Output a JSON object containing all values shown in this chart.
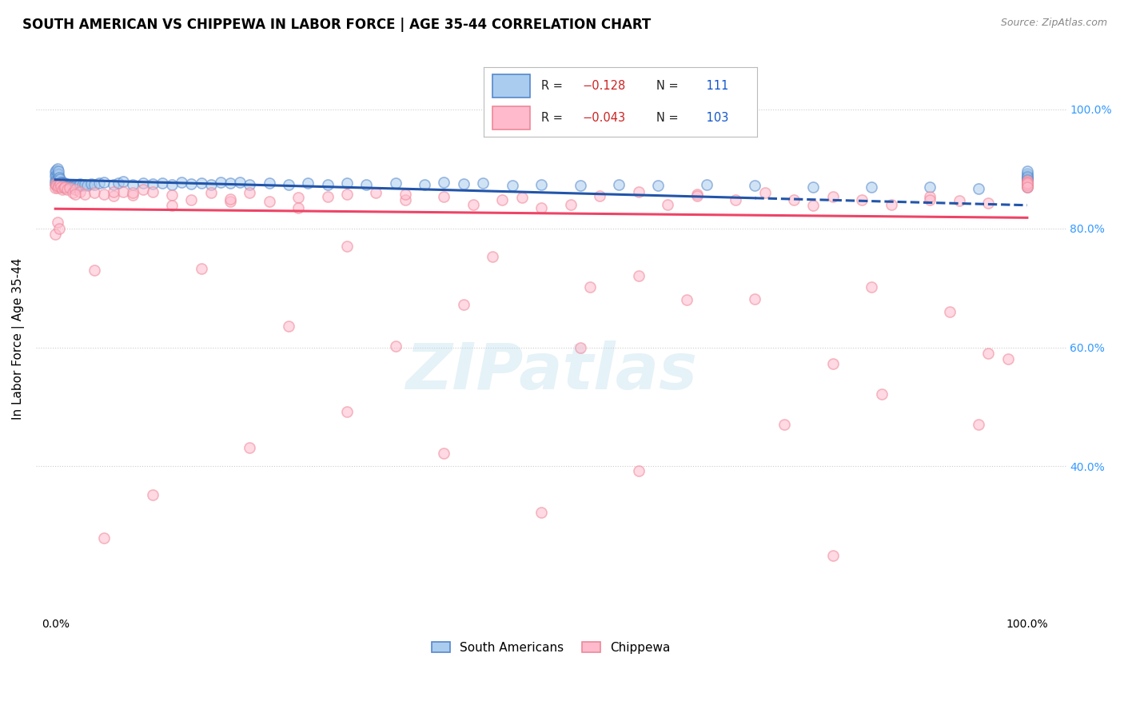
{
  "title": "SOUTH AMERICAN VS CHIPPEWA IN LABOR FORCE | AGE 35-44 CORRELATION CHART",
  "source": "Source: ZipAtlas.com",
  "ylabel": "In Labor Force | Age 35-44",
  "watermark": "ZIPatlas",
  "legend_blue_R": "-0.128",
  "legend_blue_N": "111",
  "legend_pink_R": "-0.043",
  "legend_pink_N": "103",
  "blue_face": "#AACCEE",
  "blue_edge": "#5588CC",
  "pink_face": "#FFBBCC",
  "pink_edge": "#EE8899",
  "trend_blue": "#2255AA",
  "trend_pink": "#EE4466",
  "right_axis_color": "#3399FF",
  "grid_color": "#CCCCCC",
  "bg_color": "#FFFFFF",
  "ylim": [
    0.15,
    1.08
  ],
  "xlim": [
    -0.02,
    1.04
  ],
  "ytick_vals": [
    0.4,
    0.6,
    0.8,
    1.0
  ],
  "ytick_labels": [
    "40.0%",
    "60.0%",
    "80.0%",
    "100.0%"
  ],
  "blue_trend_x0": 0.0,
  "blue_trend_x1": 0.72,
  "blue_trend_y0": 0.882,
  "blue_trend_y1": 0.851,
  "blue_trend_dash_x0": 0.72,
  "blue_trend_dash_x1": 1.0,
  "blue_trend_dash_y0": 0.851,
  "blue_trend_dash_y1": 0.839,
  "pink_trend_x0": 0.0,
  "pink_trend_x1": 1.0,
  "pink_trend_y0": 0.833,
  "pink_trend_y1": 0.818,
  "marker_size": 90,
  "marker_alpha": 0.55,
  "marker_lw": 1.2,
  "blue_x": [
    0.0,
    0.0,
    0.0,
    0.0,
    0.001,
    0.001,
    0.001,
    0.001,
    0.002,
    0.002,
    0.002,
    0.002,
    0.002,
    0.003,
    0.003,
    0.003,
    0.003,
    0.003,
    0.004,
    0.004,
    0.004,
    0.005,
    0.005,
    0.005,
    0.006,
    0.006,
    0.007,
    0.007,
    0.008,
    0.008,
    0.009,
    0.009,
    0.01,
    0.01,
    0.011,
    0.012,
    0.013,
    0.014,
    0.015,
    0.016,
    0.017,
    0.018,
    0.019,
    0.02,
    0.022,
    0.025,
    0.028,
    0.03,
    0.033,
    0.037,
    0.04,
    0.045,
    0.05,
    0.06,
    0.065,
    0.07,
    0.08,
    0.09,
    0.1,
    0.11,
    0.12,
    0.13,
    0.14,
    0.15,
    0.16,
    0.17,
    0.18,
    0.19,
    0.2,
    0.22,
    0.24,
    0.26,
    0.28,
    0.3,
    0.32,
    0.35,
    0.38,
    0.4,
    0.42,
    0.44,
    0.47,
    0.5,
    0.54,
    0.58,
    0.62,
    0.67,
    0.72,
    0.78,
    0.84,
    0.9,
    0.95,
    1.0,
    1.0,
    1.0,
    1.0,
    1.0,
    1.0,
    1.0,
    1.0,
    1.0,
    1.0,
    1.0,
    1.0,
    1.0,
    1.0,
    1.0,
    1.0,
    1.0,
    1.0,
    1.0,
    1.0
  ],
  "blue_y": [
    0.875,
    0.88,
    0.888,
    0.895,
    0.874,
    0.882,
    0.89,
    0.898,
    0.873,
    0.879,
    0.885,
    0.892,
    0.9,
    0.871,
    0.877,
    0.884,
    0.891,
    0.897,
    0.872,
    0.878,
    0.886,
    0.87,
    0.876,
    0.883,
    0.871,
    0.878,
    0.87,
    0.877,
    0.871,
    0.876,
    0.87,
    0.875,
    0.871,
    0.876,
    0.87,
    0.871,
    0.87,
    0.872,
    0.871,
    0.87,
    0.87,
    0.871,
    0.87,
    0.871,
    0.87,
    0.875,
    0.872,
    0.874,
    0.872,
    0.875,
    0.873,
    0.876,
    0.878,
    0.874,
    0.876,
    0.879,
    0.874,
    0.876,
    0.875,
    0.876,
    0.873,
    0.877,
    0.875,
    0.876,
    0.874,
    0.877,
    0.876,
    0.878,
    0.873,
    0.876,
    0.874,
    0.876,
    0.873,
    0.876,
    0.874,
    0.876,
    0.873,
    0.877,
    0.875,
    0.876,
    0.872,
    0.873,
    0.872,
    0.874,
    0.872,
    0.873,
    0.872,
    0.87,
    0.87,
    0.869,
    0.867,
    0.875,
    0.878,
    0.882,
    0.886,
    0.89,
    0.893,
    0.896,
    0.882,
    0.878,
    0.875,
    0.88,
    0.884,
    0.887,
    0.878,
    0.875,
    0.872,
    0.87,
    0.875,
    0.878,
    0.882
  ],
  "pink_x": [
    0.0,
    0.0,
    0.0,
    0.001,
    0.002,
    0.002,
    0.003,
    0.004,
    0.005,
    0.006,
    0.007,
    0.009,
    0.01,
    0.012,
    0.015,
    0.018,
    0.02,
    0.025,
    0.03,
    0.04,
    0.05,
    0.06,
    0.07,
    0.08,
    0.09,
    0.1,
    0.12,
    0.14,
    0.16,
    0.18,
    0.2,
    0.22,
    0.25,
    0.28,
    0.3,
    0.33,
    0.36,
    0.4,
    0.43,
    0.46,
    0.5,
    0.53,
    0.56,
    0.6,
    0.63,
    0.66,
    0.7,
    0.73,
    0.76,
    0.8,
    0.83,
    0.86,
    0.9,
    0.93,
    0.96,
    1.0,
    1.0,
    1.0,
    1.0,
    1.0,
    1.0,
    1.0,
    1.0,
    0.04,
    0.08,
    0.12,
    0.18,
    0.24,
    0.3,
    0.36,
    0.42,
    0.48,
    0.54,
    0.6,
    0.66,
    0.72,
    0.78,
    0.84,
    0.9,
    0.96,
    0.02,
    0.06,
    0.15,
    0.25,
    0.35,
    0.45,
    0.55,
    0.65,
    0.75,
    0.85,
    0.92,
    0.98,
    0.1,
    0.2,
    0.4,
    0.6,
    0.8,
    1.0,
    0.05,
    0.5,
    0.8,
    0.95,
    0.3
  ],
  "pink_y": [
    0.875,
    0.868,
    0.79,
    0.872,
    0.868,
    0.81,
    0.871,
    0.8,
    0.875,
    0.87,
    0.865,
    0.868,
    0.87,
    0.865,
    0.868,
    0.86,
    0.865,
    0.862,
    0.858,
    0.86,
    0.858,
    0.855,
    0.862,
    0.856,
    0.865,
    0.862,
    0.856,
    0.848,
    0.86,
    0.845,
    0.86,
    0.845,
    0.852,
    0.854,
    0.858,
    0.86,
    0.848,
    0.853,
    0.84,
    0.848,
    0.835,
    0.84,
    0.855,
    0.862,
    0.84,
    0.858,
    0.848,
    0.86,
    0.848,
    0.854,
    0.848,
    0.84,
    0.853,
    0.847,
    0.842,
    0.872,
    0.878,
    0.88,
    0.874,
    0.878,
    0.87,
    0.873,
    0.876,
    0.73,
    0.86,
    0.838,
    0.85,
    0.635,
    0.77,
    0.858,
    0.672,
    0.852,
    0.6,
    0.72,
    0.855,
    0.682,
    0.838,
    0.702,
    0.848,
    0.59,
    0.858,
    0.862,
    0.732,
    0.835,
    0.602,
    0.752,
    0.702,
    0.68,
    0.47,
    0.522,
    0.66,
    0.58,
    0.352,
    0.432,
    0.422,
    0.392,
    0.572,
    0.87,
    0.28,
    0.322,
    0.25,
    0.47,
    0.492
  ]
}
